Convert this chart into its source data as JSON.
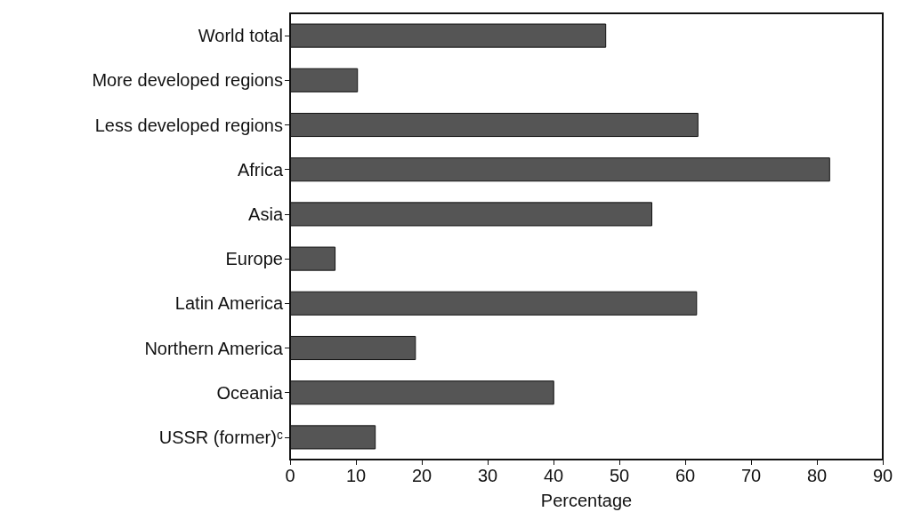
{
  "chart_data": {
    "type": "bar",
    "orientation": "horizontal",
    "xlabel": "Percentage",
    "categories": [
      "World total",
      "More developed regions",
      "Less developed regions",
      "Africa",
      "Asia",
      "Europe",
      "Latin America",
      "Northern America",
      "Oceania",
      "USSR (former)ᶜ"
    ],
    "values": [
      48,
      10.3,
      62,
      82,
      55,
      6.9,
      61.8,
      19.1,
      40.1,
      13
    ],
    "color": "#555555",
    "xlim": [
      0,
      90
    ],
    "xticks": [
      0,
      10,
      20,
      30,
      40,
      50,
      60,
      70,
      80,
      90
    ],
    "grid": false
  }
}
